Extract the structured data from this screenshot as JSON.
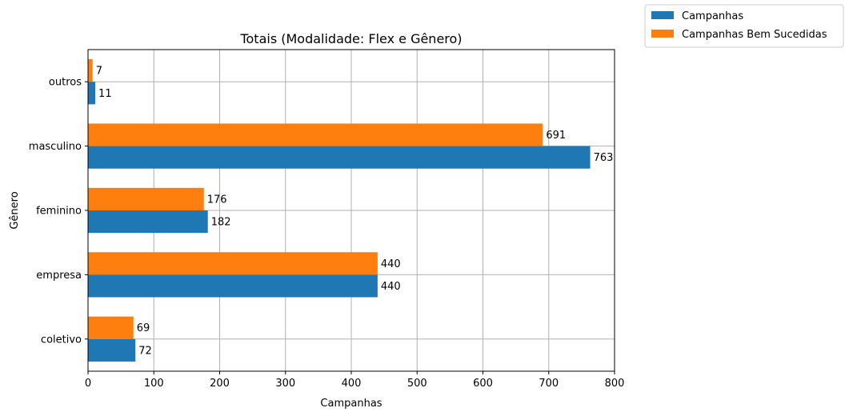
{
  "chart_data": {
    "type": "bar",
    "orientation": "horizontal",
    "title": "Totais (Modalidade: Flex e Gênero)",
    "xlabel": "Campanhas",
    "ylabel": "Gênero",
    "categories": [
      "coletivo",
      "empresa",
      "feminino",
      "masculino",
      "outros"
    ],
    "series": [
      {
        "name": "Campanhas",
        "color": "#1f77b4",
        "values": [
          72,
          440,
          182,
          763,
          11
        ]
      },
      {
        "name": "Campanhas Bem Sucedidas",
        "color": "#ff7f0e",
        "values": [
          69,
          440,
          176,
          691,
          7
        ]
      }
    ],
    "xlim": [
      0,
      800
    ],
    "xticks": [
      0,
      100,
      200,
      300,
      400,
      500,
      600,
      700,
      800
    ],
    "grid": true,
    "legend_position": "outside top-right"
  }
}
